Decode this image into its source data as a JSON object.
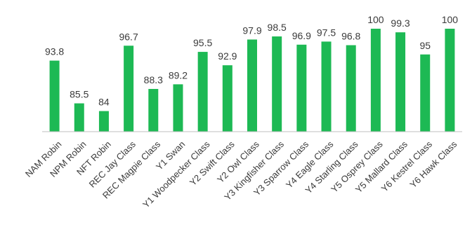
{
  "chart_data": {
    "type": "bar",
    "title": "",
    "xlabel": "",
    "ylabel": "",
    "categories": [
      "NAM Robin",
      "NPM Robin",
      "NFT Robin",
      "REC Jay Class",
      "REC Magpie Class",
      "Y1 Swan",
      "Y1 Woodpecker Class",
      "Y2 Swift Class",
      "Y2 Owl Class",
      "Y3 Kingfisher Class",
      "Y3 Sparrow Class",
      "Y4 Eagle Class",
      "Y4 Starling Class",
      "Y5 Osprey Class",
      "Y5 Mallard Class",
      "Y6 Kestrel Class",
      "Y6 Hawk Class"
    ],
    "values": [
      93.8,
      85.5,
      84,
      96.7,
      88.3,
      89.2,
      95.5,
      92.9,
      97.9,
      98.5,
      96.9,
      97.5,
      96.8,
      100,
      99.3,
      95,
      100
    ],
    "data_labels": [
      "93.8",
      "85.5",
      "84",
      "96.7",
      "88.3",
      "89.2",
      "95.5",
      "92.9",
      "97.9",
      "98.5",
      "96.9",
      "97.5",
      "96.8",
      "100",
      "99.3",
      "95",
      "100"
    ],
    "ylim": [
      80,
      100
    ],
    "grid": false,
    "legend": "none",
    "bar_color": "#1db954",
    "axis_color": "#bfbfbf"
  }
}
